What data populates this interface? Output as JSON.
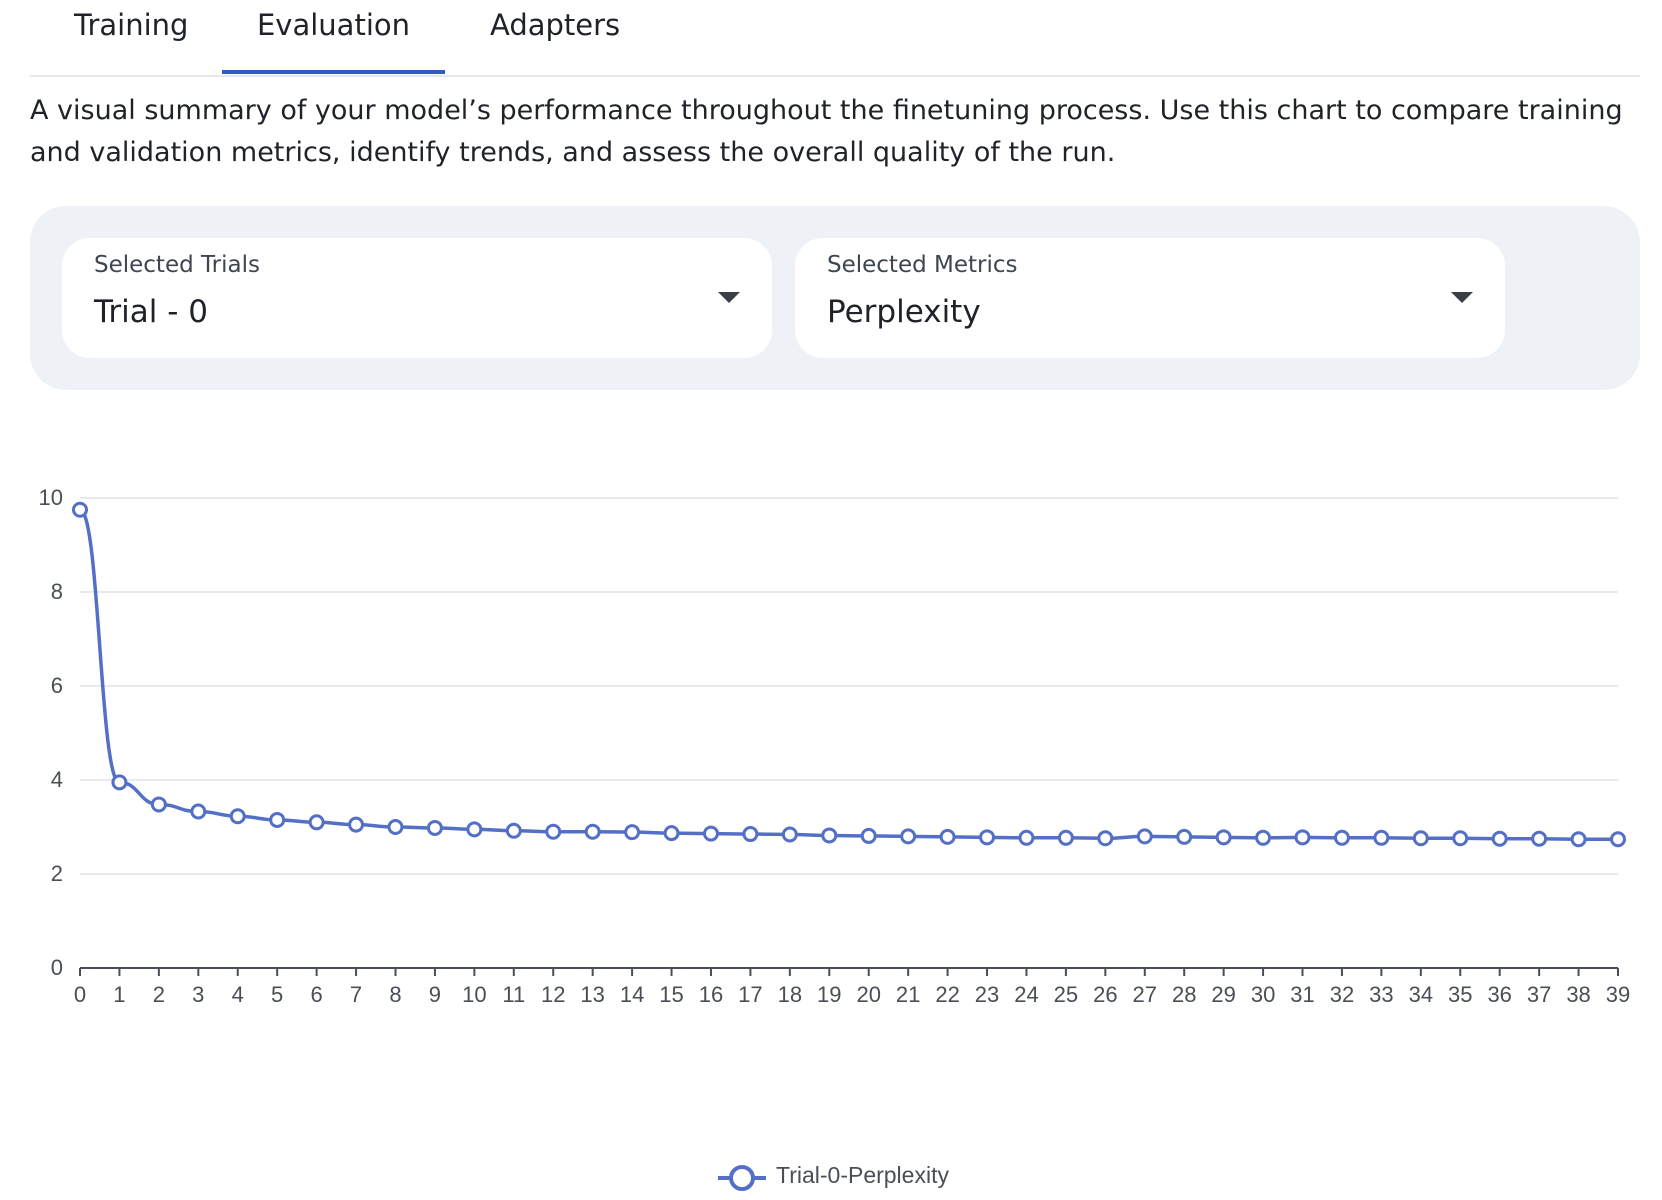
{
  "tabs": [
    {
      "label": "Training",
      "active": false
    },
    {
      "label": "Evaluation",
      "active": true
    },
    {
      "label": "Adapters",
      "active": false
    }
  ],
  "description": "A visual summary of your model’s performance throughout the finetuning process. Use this chart to compare training and validation metrics, identify trends, and assess the overall quality of the run.",
  "filters": {
    "trials": {
      "label": "Selected Trials",
      "value": "Trial - 0"
    },
    "metrics": {
      "label": "Selected Metrics",
      "value": "Perplexity"
    }
  },
  "colors": {
    "accent": "#2f5bc5",
    "series": "#5470c6",
    "panel_bg": "#eef2f7"
  },
  "icons": {
    "dropdown": "caret-down-icon",
    "legend": "circle-line-marker-icon"
  },
  "chart_data": {
    "type": "line",
    "x": [
      0,
      1,
      2,
      3,
      4,
      5,
      6,
      7,
      8,
      9,
      10,
      11,
      12,
      13,
      14,
      15,
      16,
      17,
      18,
      19,
      20,
      21,
      22,
      23,
      24,
      25,
      26,
      27,
      28,
      29,
      30,
      31,
      32,
      33,
      34,
      35,
      36,
      37,
      38,
      39
    ],
    "xlabels": [
      "0",
      "1",
      "2",
      "3",
      "4",
      "5",
      "6",
      "7",
      "8",
      "9",
      "10",
      "11",
      "12",
      "13",
      "14",
      "15",
      "16",
      "17",
      "18",
      "19",
      "20",
      "21",
      "22",
      "23",
      "24",
      "25",
      "26",
      "27",
      "28",
      "29",
      "30",
      "31",
      "32",
      "33",
      "34",
      "35",
      "36",
      "37",
      "38",
      "39"
    ],
    "series": [
      {
        "name": "Trial-0-Perplexity",
        "values": [
          9.75,
          3.95,
          3.48,
          3.33,
          3.23,
          3.15,
          3.1,
          3.05,
          3.0,
          2.98,
          2.95,
          2.92,
          2.9,
          2.9,
          2.89,
          2.87,
          2.86,
          2.85,
          2.84,
          2.82,
          2.81,
          2.8,
          2.79,
          2.78,
          2.77,
          2.77,
          2.76,
          2.8,
          2.79,
          2.78,
          2.77,
          2.78,
          2.77,
          2.77,
          2.76,
          2.76,
          2.75,
          2.75,
          2.74,
          2.74
        ]
      }
    ],
    "yticks": [
      "0",
      "2",
      "4",
      "6",
      "8",
      "10"
    ],
    "ylim": [
      0,
      10
    ],
    "title": "",
    "xlabel": "",
    "ylabel": "",
    "grid": true,
    "legend": "bottom-center"
  }
}
